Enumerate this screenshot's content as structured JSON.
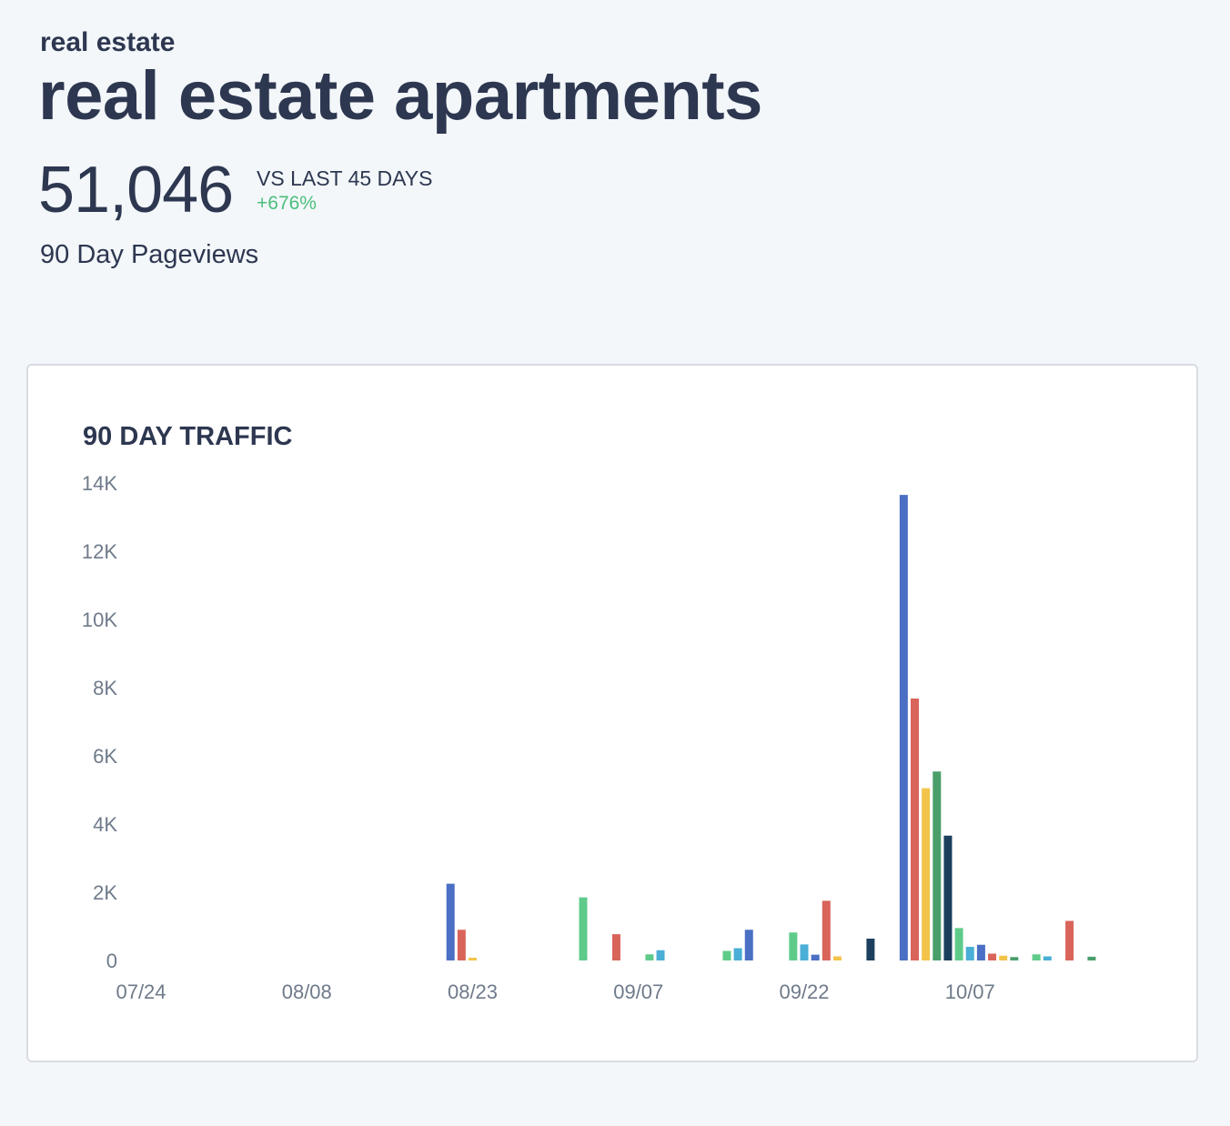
{
  "header": {
    "category": "real estate",
    "title": "real estate apartments"
  },
  "metric": {
    "value": "51,046",
    "compare_label": "VS LAST 45 DAYS",
    "change": "+676%",
    "caption": "90 Day Pageviews"
  },
  "colors": {
    "background": "#f3f7fa",
    "text": "#2d3750",
    "positive": "#4cbf7c",
    "palette": [
      "#4a6fc4",
      "#d9645a",
      "#f3c44a",
      "#4a9e6a",
      "#1c3f5e",
      "#5fcb8a",
      "#4aaed6"
    ]
  },
  "chart_data": {
    "type": "bar",
    "title": "90 DAY TRAFFIC",
    "xlabel": "",
    "ylabel": "",
    "ylim": [
      0,
      14000
    ],
    "y_ticks": [
      "0",
      "2K",
      "4K",
      "6K",
      "8K",
      "10K",
      "12K",
      "14K"
    ],
    "x_ticks": [
      "07/24",
      "08/08",
      "08/23",
      "09/07",
      "09/22",
      "10/07"
    ],
    "grid": false,
    "legend": "none",
    "bars": [
      {
        "date": "08/21",
        "value": 2250,
        "color": "#4a6fc4"
      },
      {
        "date": "08/22",
        "value": 900,
        "color": "#d9645a"
      },
      {
        "date": "08/23",
        "value": 80,
        "color": "#f3c44a"
      },
      {
        "date": "09/02",
        "value": 1850,
        "color": "#5fcb8a"
      },
      {
        "date": "09/05",
        "value": 770,
        "color": "#d9645a"
      },
      {
        "date": "09/08",
        "value": 180,
        "color": "#5fcb8a"
      },
      {
        "date": "09/09",
        "value": 300,
        "color": "#4aaed6"
      },
      {
        "date": "09/15",
        "value": 280,
        "color": "#5fcb8a"
      },
      {
        "date": "09/16",
        "value": 360,
        "color": "#4aaed6"
      },
      {
        "date": "09/17",
        "value": 900,
        "color": "#4a6fc4"
      },
      {
        "date": "09/21",
        "value": 820,
        "color": "#5fcb8a"
      },
      {
        "date": "09/22",
        "value": 470,
        "color": "#4aaed6"
      },
      {
        "date": "09/23",
        "value": 170,
        "color": "#4a6fc4"
      },
      {
        "date": "09/24",
        "value": 1750,
        "color": "#d9645a"
      },
      {
        "date": "09/25",
        "value": 120,
        "color": "#f3c44a"
      },
      {
        "date": "09/28",
        "value": 640,
        "color": "#1c3f5e"
      },
      {
        "date": "10/01",
        "value": 13650,
        "color": "#4a6fc4"
      },
      {
        "date": "10/02",
        "value": 7680,
        "color": "#d9645a"
      },
      {
        "date": "10/03",
        "value": 5050,
        "color": "#f3c44a"
      },
      {
        "date": "10/04",
        "value": 5540,
        "color": "#4a9e6a"
      },
      {
        "date": "10/05",
        "value": 3660,
        "color": "#1c3f5e"
      },
      {
        "date": "10/06",
        "value": 950,
        "color": "#5fcb8a"
      },
      {
        "date": "10/07",
        "value": 400,
        "color": "#4aaed6"
      },
      {
        "date": "10/08",
        "value": 460,
        "color": "#4a6fc4"
      },
      {
        "date": "10/09",
        "value": 200,
        "color": "#d9645a"
      },
      {
        "date": "10/10",
        "value": 140,
        "color": "#f3c44a"
      },
      {
        "date": "10/11",
        "value": 100,
        "color": "#4a9e6a"
      },
      {
        "date": "10/13",
        "value": 180,
        "color": "#5fcb8a"
      },
      {
        "date": "10/14",
        "value": 120,
        "color": "#4aaed6"
      },
      {
        "date": "10/16",
        "value": 1160,
        "color": "#d9645a"
      },
      {
        "date": "10/18",
        "value": 110,
        "color": "#4a9e6a"
      }
    ]
  }
}
